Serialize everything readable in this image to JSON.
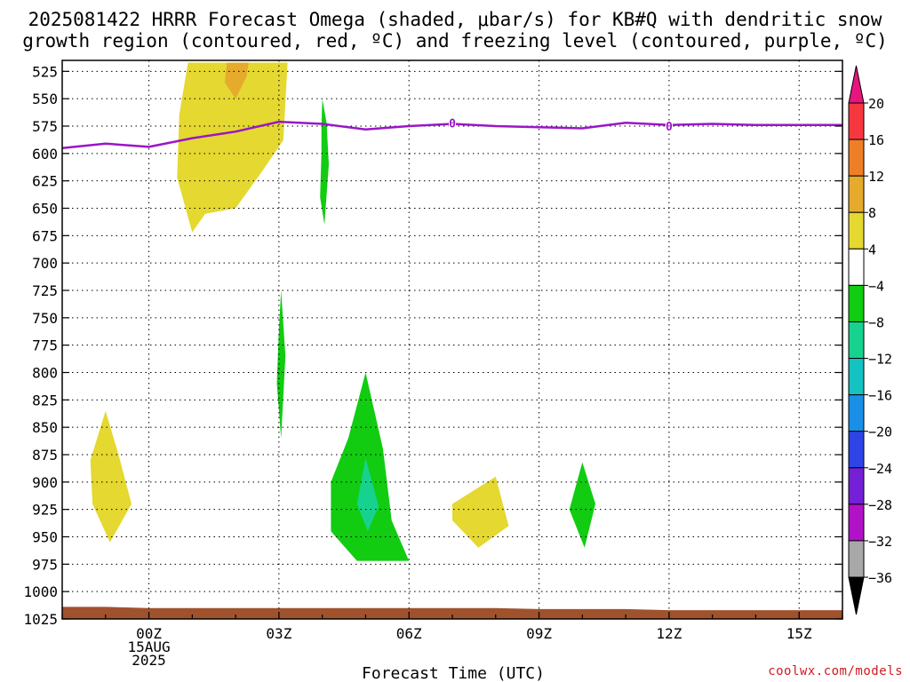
{
  "chart_data": {
    "type": "area",
    "title_lines": [
      "2025081422 HRRR Forecast Omega (shaded, μbar/s) for KB#Q with dendritic snow",
      "growth region (contoured, red, ºC) and freezing level (contoured, purple, ºC)"
    ],
    "xlabel": "Forecast Time (UTC)",
    "ylabel": "",
    "credit": "coolwx.com/models",
    "x_unit": "hours relative to 2025-08-15 00Z",
    "xlim": [
      -2,
      16
    ],
    "ylim": [
      1025,
      515
    ],
    "y_ticks": [
      525,
      550,
      575,
      600,
      625,
      650,
      675,
      700,
      725,
      750,
      775,
      800,
      825,
      850,
      875,
      900,
      925,
      950,
      975,
      1000,
      1025
    ],
    "x_ticks": [
      {
        "x": 0,
        "lines": [
          "00Z",
          "15AUG",
          "2025"
        ]
      },
      {
        "x": 3,
        "lines": [
          "03Z"
        ]
      },
      {
        "x": 6,
        "lines": [
          "06Z"
        ]
      },
      {
        "x": 9,
        "lines": [
          "09Z"
        ]
      },
      {
        "x": 12,
        "lines": [
          "12Z"
        ]
      },
      {
        "x": 15,
        "lines": [
          "15Z"
        ]
      }
    ],
    "grid": true,
    "colorbar": {
      "labels": [
        "20",
        "16",
        "12",
        "8",
        "4",
        "−4",
        "−8",
        "−12",
        "−16",
        "−20",
        "−24",
        "−28",
        "−32",
        "−36"
      ],
      "bins": [
        {
          "from": 16,
          "to": 20,
          "color": "#f6373f"
        },
        {
          "from": 12,
          "to": 16,
          "color": "#ef7f26"
        },
        {
          "from": 8,
          "to": 12,
          "color": "#e6aa2c"
        },
        {
          "from": 4,
          "to": 8,
          "color": "#e4d831"
        },
        {
          "from": -4,
          "to": 4,
          "color": "#ffffff"
        },
        {
          "from": -8,
          "to": -4,
          "color": "#11cc11"
        },
        {
          "from": -12,
          "to": -8,
          "color": "#17d28f"
        },
        {
          "from": -16,
          "to": -12,
          "color": "#15c2c2"
        },
        {
          "from": -20,
          "to": -16,
          "color": "#1a8fe8"
        },
        {
          "from": -24,
          "to": -20,
          "color": "#2d45e6"
        },
        {
          "from": -28,
          "to": -24,
          "color": "#7420d6"
        },
        {
          "from": -32,
          "to": -28,
          "color": "#b112c8"
        },
        {
          "from": -36,
          "to": -32,
          "color": "#a8a8a8"
        }
      ],
      "top_arrow_color": "#e8157f",
      "bottom_arrow_color": "#000000"
    },
    "omega_regions": [
      {
        "name": "",
        "value": 6,
        "color": "#e4d831",
        "polygon": [
          [
            1,
            672
          ],
          [
            1.3,
            655
          ],
          [
            2,
            650
          ],
          [
            2.6,
            617
          ],
          [
            3.1,
            588
          ],
          [
            3.2,
            517
          ],
          [
            0.9,
            517
          ],
          [
            0.7,
            565
          ],
          [
            0.65,
            622
          ]
        ]
      },
      {
        "name": "",
        "value": 10,
        "color": "#e6aa2c",
        "polygon": [
          [
            1.8,
            517
          ],
          [
            1.75,
            535
          ],
          [
            2,
            550
          ],
          [
            2.25,
            530
          ],
          [
            2.3,
            517
          ]
        ]
      },
      {
        "name": "",
        "value": -6,
        "color": "#11cc11",
        "polygon": [
          [
            4,
            550
          ],
          [
            4.1,
            572
          ],
          [
            4.15,
            610
          ],
          [
            4.05,
            665
          ],
          [
            3.95,
            640
          ],
          [
            3.98,
            600
          ],
          [
            3.98,
            575
          ]
        ]
      },
      {
        "name": "",
        "value": -6,
        "color": "#11cc11",
        "polygon": [
          [
            3.05,
            725
          ],
          [
            3.15,
            785
          ],
          [
            3.05,
            860
          ],
          [
            2.95,
            810
          ],
          [
            3.0,
            760
          ]
        ]
      },
      {
        "name": "",
        "value": 6,
        "color": "#e4d831",
        "polygon": [
          [
            -1,
            835
          ],
          [
            -0.7,
            875
          ],
          [
            -0.4,
            920
          ],
          [
            -0.9,
            955
          ],
          [
            -1.3,
            920
          ],
          [
            -1.35,
            880
          ]
        ]
      },
      {
        "name": "",
        "value": -6,
        "color": "#11cc11",
        "polygon": [
          [
            5,
            800
          ],
          [
            5.4,
            870
          ],
          [
            5.6,
            935
          ],
          [
            6,
            972
          ],
          [
            4.8,
            972
          ],
          [
            4.2,
            945
          ],
          [
            4.2,
            900
          ],
          [
            4.6,
            860
          ]
        ]
      },
      {
        "name": "",
        "value": -10,
        "color": "#17d28f",
        "polygon": [
          [
            5,
            878
          ],
          [
            5.3,
            922
          ],
          [
            5.05,
            945
          ],
          [
            4.8,
            920
          ]
        ]
      },
      {
        "name": "",
        "value": 6,
        "color": "#e4d831",
        "polygon": [
          [
            7,
            920
          ],
          [
            8,
            895
          ],
          [
            8.3,
            940
          ],
          [
            7.6,
            960
          ],
          [
            7,
            935
          ]
        ]
      },
      {
        "name": "",
        "value": -6,
        "color": "#11cc11",
        "polygon": [
          [
            10,
            882
          ],
          [
            10.3,
            920
          ],
          [
            10.05,
            960
          ],
          [
            9.7,
            925
          ]
        ]
      }
    ],
    "freezing_level": {
      "name": "",
      "color": "#9a16c8",
      "x": [
        -2,
        -1,
        0,
        1,
        2,
        3,
        4,
        5,
        6,
        7,
        8,
        9,
        10,
        11,
        12,
        13,
        14,
        15,
        16
      ],
      "y": [
        595,
        591,
        594,
        586,
        580,
        571,
        573,
        578,
        575,
        573,
        575,
        576,
        577,
        572,
        574,
        573,
        574,
        574,
        574
      ],
      "labels": [
        {
          "x": 7,
          "y": 572,
          "text": "0"
        },
        {
          "x": 12,
          "y": 575,
          "text": "0"
        }
      ]
    },
    "terrain": {
      "name": "",
      "color": "#a0522d",
      "x": [
        -2,
        -1,
        0,
        1,
        2,
        3,
        4,
        5,
        6,
        7,
        8,
        9,
        10,
        11,
        12,
        13,
        14,
        15,
        16
      ],
      "y": [
        1014,
        1014,
        1015,
        1015,
        1015,
        1015,
        1015,
        1015,
        1015,
        1015,
        1015,
        1016,
        1016,
        1016,
        1017,
        1017,
        1017,
        1017,
        1017
      ]
    }
  }
}
